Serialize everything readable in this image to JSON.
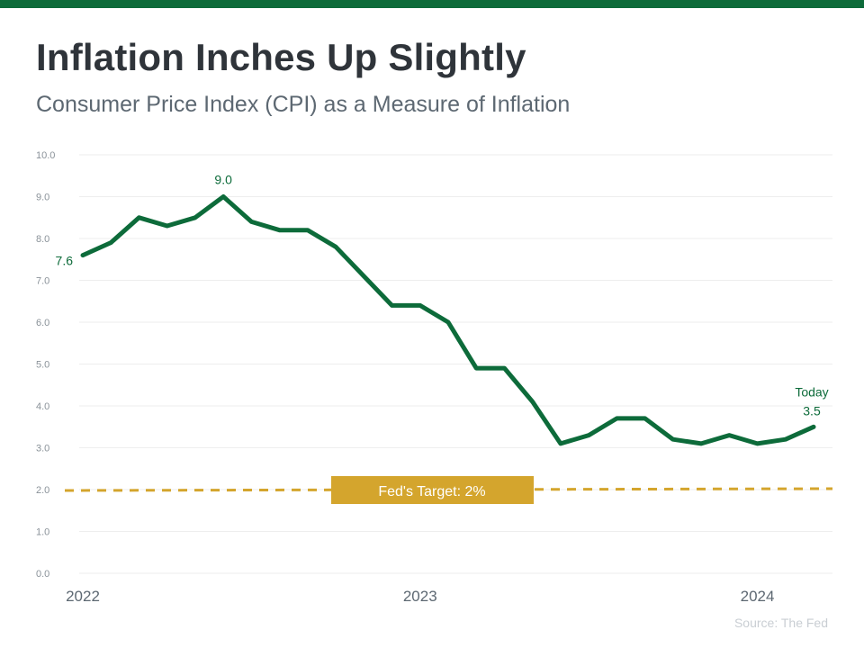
{
  "header": {
    "title": "Inflation Inches Up Slightly",
    "subtitle": "Consumer Price Index (CPI) as a Measure of Inflation"
  },
  "footer": {
    "source": "Source: The Fed"
  },
  "colors": {
    "line": "#0d6b3a",
    "target": "#d4a52d",
    "topbar": "#0d6b3a",
    "grid": "#eeeeee"
  },
  "chart_data": {
    "type": "line",
    "ylim": [
      0,
      10
    ],
    "yticks": [
      "0.0",
      "1.0",
      "2.0",
      "3.0",
      "4.0",
      "5.0",
      "6.0",
      "7.0",
      "8.0",
      "9.0",
      "10.0"
    ],
    "x_tick_labels": [
      {
        "label": "2022",
        "index": 0
      },
      {
        "label": "2023",
        "index": 12
      },
      {
        "label": "2024",
        "index": 24
      }
    ],
    "grid": true,
    "series": [
      {
        "values": [
          7.6,
          7.9,
          8.5,
          8.3,
          8.5,
          9.0,
          8.4,
          8.2,
          8.2,
          7.8,
          7.1,
          6.4,
          6.4,
          6.0,
          4.9,
          4.9,
          4.1,
          3.1,
          3.3,
          3.7,
          3.7,
          3.2,
          3.1,
          3.3,
          3.1,
          3.2,
          3.5
        ]
      }
    ],
    "annotations": [
      {
        "index": 0,
        "text": "7.6"
      },
      {
        "index": 5,
        "text": "9.0"
      },
      {
        "index": 26,
        "text": "3.5",
        "note": "Today"
      }
    ],
    "reference_line": {
      "value": 2.0,
      "label": "Fed's Target: 2%"
    }
  }
}
